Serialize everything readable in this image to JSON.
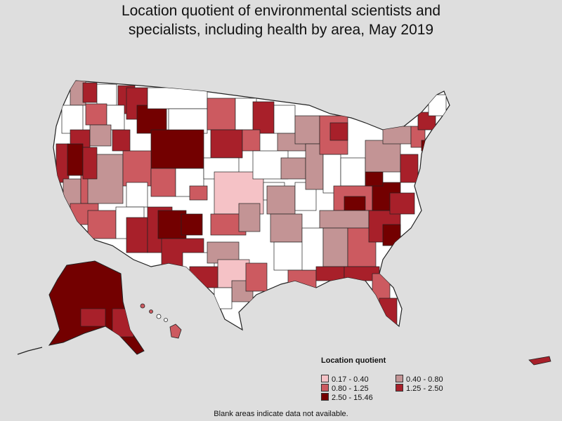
{
  "title": {
    "line1": "Location quotient of environmental scientists and",
    "line2": "specialists, including health by area, May 2019"
  },
  "legend": {
    "title": "Location quotient",
    "items": [
      {
        "label": "0.17 - 0.40",
        "color": "#f5c2c6"
      },
      {
        "label": "0.40 - 0.80",
        "color": "#c39495"
      },
      {
        "label": "0.80 - 1.25",
        "color": "#cc5a60"
      },
      {
        "label": "1.25 - 2.50",
        "color": "#a8202a"
      },
      {
        "label": "2.50 - 15.46",
        "color": "#730000"
      }
    ]
  },
  "footnote": "Blank areas indicate data not available.",
  "colors": {
    "background": "#dedede",
    "no_data": "#ffffff",
    "border": "#222222"
  }
}
